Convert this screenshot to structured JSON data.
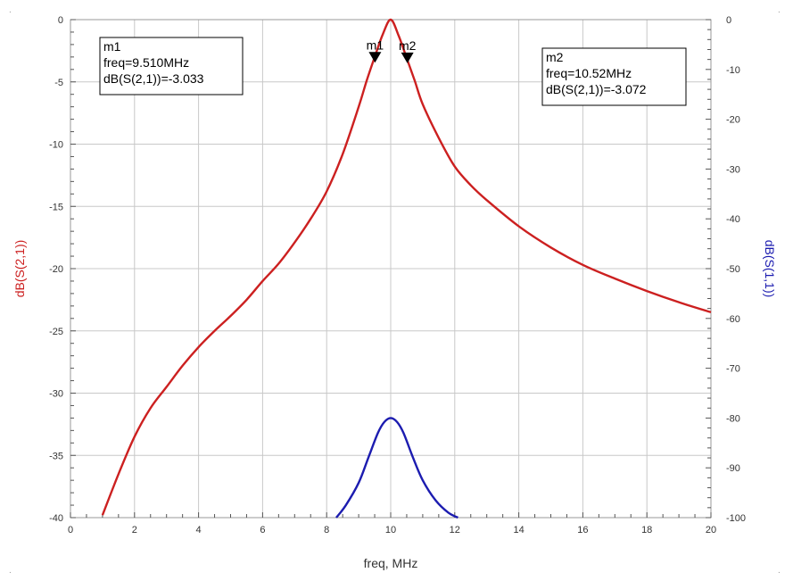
{
  "chart_data": {
    "type": "line",
    "xlabel": "freq, MHz",
    "ylabel": "dB(S(2,1))",
    "y2label": "dB(S(1,1))",
    "xlim": [
      0,
      20
    ],
    "ylim": [
      -40,
      0
    ],
    "y2lim": [
      -100,
      0
    ],
    "x_ticks": [
      0,
      2,
      4,
      6,
      8,
      10,
      12,
      14,
      16,
      18,
      20
    ],
    "y_ticks": [
      0,
      -5,
      -10,
      -15,
      -20,
      -25,
      -30,
      -35,
      -40
    ],
    "y2_ticks": [
      0,
      -10,
      -20,
      -30,
      -40,
      -50,
      -60,
      -70,
      -80,
      -90,
      -100
    ],
    "grid": true,
    "colors": {
      "s21": "#cc2020",
      "s11": "#1c1cb0",
      "grid": "#c8c8c8"
    },
    "series": [
      {
        "axis": "left",
        "x": [
          1,
          1.5,
          2,
          2.5,
          3,
          3.5,
          4,
          4.5,
          5,
          5.5,
          6,
          6.5,
          7,
          7.5,
          8,
          8.5,
          9,
          9.25,
          9.5,
          9.75,
          10,
          10.25,
          10.5,
          10.75,
          11,
          11.5,
          12,
          12.5,
          13,
          14,
          15,
          16,
          17,
          18,
          19,
          20
        ],
        "y": [
          -39.8,
          -36.5,
          -33.5,
          -31.2,
          -29.5,
          -27.8,
          -26.3,
          -25.0,
          -23.8,
          -22.5,
          -21.0,
          -19.6,
          -17.9,
          -16.0,
          -13.8,
          -10.8,
          -7.0,
          -4.9,
          -3.0,
          -1.2,
          0.0,
          -1.3,
          -3.1,
          -4.9,
          -6.8,
          -9.5,
          -11.8,
          -13.3,
          -14.5,
          -16.6,
          -18.3,
          -19.7,
          -20.8,
          -21.8,
          -22.7,
          -23.5
        ]
      },
      {
        "axis": "right",
        "x": [
          8.3,
          8.6,
          9.0,
          9.3,
          9.6,
          9.8,
          10.0,
          10.2,
          10.4,
          10.7,
          11.0,
          11.4,
          11.8,
          12.1
        ],
        "y": [
          -100,
          -97.5,
          -93,
          -88,
          -83,
          -80.8,
          -80,
          -80.8,
          -83,
          -88,
          -92.5,
          -96.5,
          -99,
          -100
        ]
      }
    ],
    "markers": [
      {
        "label": "m1",
        "x": 9.51,
        "y": -3.033,
        "lines": [
          "m1",
          "freq=9.510MHz",
          "dB(S(2,1))=-3.033"
        ]
      },
      {
        "label": "m2",
        "x": 10.52,
        "y": -3.072,
        "lines": [
          "m2",
          "freq=10.52MHz",
          "dB(S(2,1))=-3.072"
        ]
      }
    ]
  }
}
